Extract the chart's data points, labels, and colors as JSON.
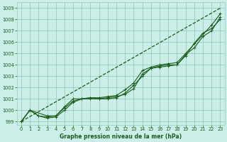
{
  "title": "Graphe pression niveau de la mer (hPa)",
  "background_color": "#cceee8",
  "grid_color": "#99ccbb",
  "line_color": "#1a5c1a",
  "xlim": [
    -0.5,
    23.5
  ],
  "ylim": [
    998.7,
    1009.5
  ],
  "yticks": [
    999,
    1000,
    1001,
    1002,
    1003,
    1004,
    1005,
    1006,
    1007,
    1008,
    1009
  ],
  "xticks": [
    0,
    1,
    2,
    3,
    4,
    5,
    6,
    7,
    8,
    9,
    10,
    11,
    12,
    13,
    14,
    15,
    16,
    17,
    18,
    19,
    20,
    21,
    22,
    23
  ],
  "series": [
    {
      "x": [
        0,
        1,
        2,
        3,
        4,
        5,
        6,
        7,
        8,
        9,
        10,
        11,
        12,
        13,
        14,
        15,
        16,
        17,
        18,
        19,
        20,
        21,
        22,
        23
      ],
      "y": [
        999.0,
        1000.0,
        999.5,
        999.4,
        999.5,
        1000.2,
        1000.8,
        1001.0,
        1001.1,
        1001.0,
        1001.1,
        1001.2,
        1001.4,
        1001.9,
        1003.2,
        1003.7,
        1003.8,
        1003.9,
        1004.0,
        1004.8,
        1005.9,
        1006.8,
        1007.2,
        1008.0
      ],
      "dotted": false
    },
    {
      "x": [
        0,
        1,
        2,
        3,
        4,
        5,
        6,
        7,
        8,
        9,
        10,
        11,
        12,
        13,
        14,
        15,
        16,
        17,
        18,
        19,
        20,
        21,
        22,
        23
      ],
      "y": [
        999.0,
        1000.0,
        999.5,
        999.3,
        999.4,
        1000.0,
        1000.7,
        1001.0,
        1001.0,
        1001.0,
        1001.0,
        1001.1,
        1001.5,
        1002.2,
        1003.0,
        1003.7,
        1003.9,
        1004.0,
        1004.0,
        1004.9,
        1005.5,
        1006.5,
        1007.0,
        1008.2
      ],
      "dotted": false
    },
    {
      "x": [
        0,
        1,
        3,
        4,
        5,
        6,
        7,
        8,
        9,
        10,
        11,
        12,
        13,
        14,
        15,
        16,
        17,
        18,
        19,
        22,
        23
      ],
      "y": [
        999.0,
        1000.0,
        999.5,
        999.5,
        1000.3,
        1001.0,
        1001.0,
        1001.1,
        1001.1,
        1001.2,
        1001.3,
        1001.8,
        1002.4,
        1003.5,
        1003.8,
        1004.0,
        1004.1,
        1004.2,
        1005.0,
        1007.5,
        1008.5
      ],
      "dotted": false
    },
    {
      "x": [
        0,
        23
      ],
      "y": [
        999.0,
        1009.0
      ],
      "dotted": true
    }
  ]
}
